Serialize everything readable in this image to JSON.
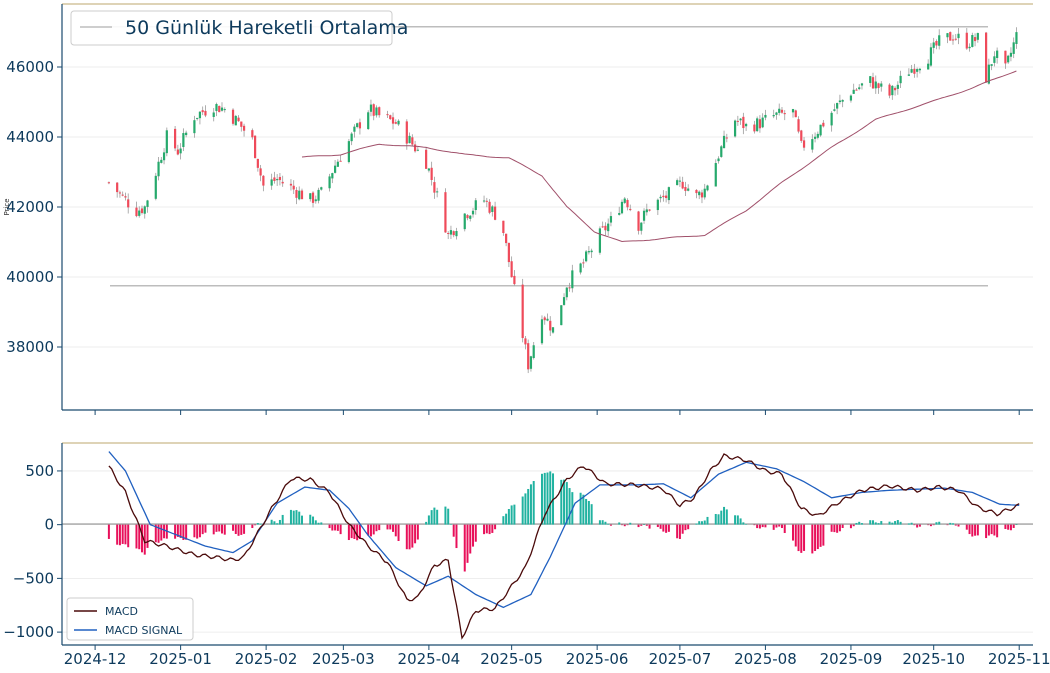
{
  "colors": {
    "up": "#26a96c",
    "down": "#ef4a5a",
    "wick": "#9a9a9a",
    "ma50": "#a0506a",
    "level_line": "#bdbdbd",
    "top_line": "#c9b98a",
    "axis": "#1a4a6e",
    "tick_text": "#0d3a5c",
    "grid": "#e8e8e8",
    "macd": "#4a0a0a",
    "signal": "#2060c0",
    "hist_pos": "#20b2a0",
    "hist_neg": "#e8105a",
    "zero_line": "#888888"
  },
  "price_panel": {
    "ylabel": "Price",
    "legend_label": "50 Günlük Hareketli Ortalama",
    "yticks": [
      "38000",
      "40000",
      "42000",
      "44000",
      "46000"
    ],
    "ytick_values": [
      38000,
      40000,
      42000,
      44000,
      46000
    ],
    "ylim": [
      36200,
      47800
    ],
    "horizontal_levels": [
      47150,
      39750
    ]
  },
  "macd_panel": {
    "yticks": [
      "500",
      "0",
      "−500",
      "−1000"
    ],
    "ytick_values": [
      500,
      0,
      -500,
      -1000
    ],
    "ylim": [
      -1120,
      760
    ],
    "legend": [
      {
        "label": "MACD",
        "color_key": "macd"
      },
      {
        "label": "MACD SIGNAL",
        "color_key": "signal"
      }
    ]
  },
  "xaxis": {
    "ticks": [
      "2024-12",
      "2025-01",
      "2025-02",
      "2025-03",
      "2025-04",
      "2025-05",
      "2025-06",
      "2025-07",
      "2025-08",
      "2025-09",
      "2025-10",
      "2025-11"
    ],
    "tick_dates": [
      "2024-12-01",
      "2025-01-01",
      "2025-02-01",
      "2025-03-01",
      "2025-04-01",
      "2025-05-01",
      "2025-06-01",
      "2025-07-01",
      "2025-08-01",
      "2025-09-01",
      "2025-10-01",
      "2025-11-01"
    ],
    "xlim": [
      "2024-11-19",
      "2025-11-06"
    ]
  },
  "chart_data": {
    "type": "candlestick",
    "title": "",
    "ylabel": "Price",
    "series_anchors": [
      [
        "2024-12-06",
        42700
      ],
      [
        "2024-12-12",
        42200
      ],
      [
        "2024-12-16",
        41900
      ],
      [
        "2024-12-19",
        42000
      ],
      [
        "2024-12-23",
        43000
      ],
      [
        "2024-12-27",
        44000
      ],
      [
        "2024-12-31",
        43600
      ],
      [
        "2025-01-06",
        44600
      ],
      [
        "2025-01-13",
        44900
      ],
      [
        "2025-01-17",
        44800
      ],
      [
        "2025-01-22",
        44400
      ],
      [
        "2025-01-27",
        43900
      ],
      [
        "2025-01-31",
        42600
      ],
      [
        "2025-02-05",
        42800
      ],
      [
        "2025-02-11",
        42500
      ],
      [
        "2025-02-17",
        42200
      ],
      [
        "2025-02-21",
        42400
      ],
      [
        "2025-02-26",
        43200
      ],
      [
        "2025-03-04",
        44000
      ],
      [
        "2025-03-10",
        44800
      ],
      [
        "2025-03-14",
        44600
      ],
      [
        "2025-03-20",
        44400
      ],
      [
        "2025-03-26",
        43800
      ],
      [
        "2025-03-31",
        43300
      ],
      [
        "2025-04-04",
        42300
      ],
      [
        "2025-04-08",
        41200
      ],
      [
        "2025-04-14",
        41800
      ],
      [
        "2025-04-21",
        42200
      ],
      [
        "2025-04-25",
        41800
      ],
      [
        "2025-04-28",
        41300
      ],
      [
        "2025-05-02",
        39600
      ],
      [
        "2025-05-07",
        37500
      ],
      [
        "2025-05-12",
        39000
      ],
      [
        "2025-05-16",
        38500
      ],
      [
        "2025-05-21",
        39800
      ],
      [
        "2025-05-27",
        40400
      ],
      [
        "2025-06-02",
        41200
      ],
      [
        "2025-06-06",
        41600
      ],
      [
        "2025-06-11",
        42300
      ],
      [
        "2025-06-16",
        41500
      ],
      [
        "2025-06-20",
        42000
      ],
      [
        "2025-06-26",
        42300
      ],
      [
        "2025-07-02",
        42700
      ],
      [
        "2025-07-07",
        42300
      ],
      [
        "2025-07-10",
        42500
      ],
      [
        "2025-07-15",
        43500
      ],
      [
        "2025-07-21",
        44500
      ],
      [
        "2025-07-25",
        44300
      ],
      [
        "2025-07-30",
        44400
      ],
      [
        "2025-08-04",
        44600
      ],
      [
        "2025-08-11",
        44700
      ],
      [
        "2025-08-14",
        43700
      ],
      [
        "2025-08-20",
        44200
      ],
      [
        "2025-08-26",
        44800
      ],
      [
        "2025-09-01",
        45300
      ],
      [
        "2025-09-08",
        45600
      ],
      [
        "2025-09-15",
        45200
      ],
      [
        "2025-09-22",
        45900
      ],
      [
        "2025-09-29",
        46300
      ],
      [
        "2025-10-03",
        46700
      ],
      [
        "2025-10-08",
        46900
      ],
      [
        "2025-10-13",
        46700
      ],
      [
        "2025-10-17",
        46800
      ],
      [
        "2025-10-20",
        45700
      ],
      [
        "2025-10-23",
        46400
      ],
      [
        "2025-10-27",
        45900
      ],
      [
        "2025-10-31",
        46900
      ]
    ],
    "ma50_anchors": [
      [
        "2025-02-14",
        43420
      ],
      [
        "2025-02-28",
        43500
      ],
      [
        "2025-03-14",
        43800
      ],
      [
        "2025-03-31",
        43700
      ],
      [
        "2025-04-14",
        43500
      ],
      [
        "2025-04-30",
        43400
      ],
      [
        "2025-05-12",
        42900
      ],
      [
        "2025-05-21",
        42000
      ],
      [
        "2025-05-31",
        41300
      ],
      [
        "2025-06-10",
        41000
      ],
      [
        "2025-06-25",
        41100
      ],
      [
        "2025-07-10",
        41200
      ],
      [
        "2025-07-25",
        41900
      ],
      [
        "2025-08-07",
        42700
      ],
      [
        "2025-08-25",
        43700
      ],
      [
        "2025-09-10",
        44500
      ],
      [
        "2025-09-30",
        45000
      ],
      [
        "2025-10-15",
        45400
      ],
      [
        "2025-10-31",
        45900
      ]
    ],
    "macd_anchors": [
      [
        "2024-12-06",
        540
      ],
      [
        "2024-12-12",
        300
      ],
      [
        "2024-12-19",
        -150
      ],
      [
        "2024-12-27",
        -200
      ],
      [
        "2025-01-06",
        -280
      ],
      [
        "2025-01-13",
        -300
      ],
      [
        "2025-01-20",
        -330
      ],
      [
        "2025-01-24",
        -300
      ],
      [
        "2025-02-03",
        150
      ],
      [
        "2025-02-10",
        430
      ],
      [
        "2025-02-17",
        420
      ],
      [
        "2025-02-24",
        300
      ],
      [
        "2025-03-03",
        0
      ],
      [
        "2025-03-10",
        -200
      ],
      [
        "2025-03-17",
        -350
      ],
      [
        "2025-03-24",
        -700
      ],
      [
        "2025-03-28",
        -680
      ],
      [
        "2025-04-03",
        -380
      ],
      [
        "2025-04-08",
        -330
      ],
      [
        "2025-04-13",
        -1050
      ],
      [
        "2025-04-18",
        -800
      ],
      [
        "2025-04-25",
        -780
      ],
      [
        "2025-05-06",
        -400
      ],
      [
        "2025-05-13",
        100
      ],
      [
        "2025-05-21",
        420
      ],
      [
        "2025-05-27",
        550
      ],
      [
        "2025-06-04",
        380
      ],
      [
        "2025-06-15",
        370
      ],
      [
        "2025-06-25",
        330
      ],
      [
        "2025-07-01",
        180
      ],
      [
        "2025-07-06",
        250
      ],
      [
        "2025-07-12",
        500
      ],
      [
        "2025-07-17",
        640
      ],
      [
        "2025-07-25",
        600
      ],
      [
        "2025-08-01",
        500
      ],
      [
        "2025-08-07",
        470
      ],
      [
        "2025-08-14",
        150
      ],
      [
        "2025-08-20",
        80
      ],
      [
        "2025-08-27",
        200
      ],
      [
        "2025-09-05",
        320
      ],
      [
        "2025-09-15",
        360
      ],
      [
        "2025-09-25",
        320
      ],
      [
        "2025-10-03",
        350
      ],
      [
        "2025-10-10",
        320
      ],
      [
        "2025-10-17",
        160
      ],
      [
        "2025-10-24",
        100
      ],
      [
        "2025-11-01",
        180
      ]
    ],
    "signal_anchors": [
      [
        "2024-12-06",
        680
      ],
      [
        "2024-12-12",
        500
      ],
      [
        "2024-12-21",
        0
      ],
      [
        "2024-12-31",
        -100
      ],
      [
        "2025-01-10",
        -200
      ],
      [
        "2025-01-20",
        -260
      ],
      [
        "2025-01-27",
        -150
      ],
      [
        "2025-02-05",
        200
      ],
      [
        "2025-02-15",
        350
      ],
      [
        "2025-02-24",
        320
      ],
      [
        "2025-03-03",
        150
      ],
      [
        "2025-03-10",
        -100
      ],
      [
        "2025-03-20",
        -400
      ],
      [
        "2025-03-31",
        -570
      ],
      [
        "2025-04-08",
        -480
      ],
      [
        "2025-04-18",
        -650
      ],
      [
        "2025-04-28",
        -770
      ],
      [
        "2025-05-08",
        -650
      ],
      [
        "2025-05-15",
        -300
      ],
      [
        "2025-05-24",
        200
      ],
      [
        "2025-06-02",
        370
      ],
      [
        "2025-06-15",
        370
      ],
      [
        "2025-06-25",
        380
      ],
      [
        "2025-07-05",
        250
      ],
      [
        "2025-07-15",
        470
      ],
      [
        "2025-07-25",
        580
      ],
      [
        "2025-08-05",
        520
      ],
      [
        "2025-08-15",
        400
      ],
      [
        "2025-08-25",
        250
      ],
      [
        "2025-09-05",
        300
      ],
      [
        "2025-09-15",
        320
      ],
      [
        "2025-09-25",
        330
      ],
      [
        "2025-10-05",
        340
      ],
      [
        "2025-10-15",
        300
      ],
      [
        "2025-10-25",
        190
      ],
      [
        "2025-11-01",
        180
      ]
    ]
  }
}
